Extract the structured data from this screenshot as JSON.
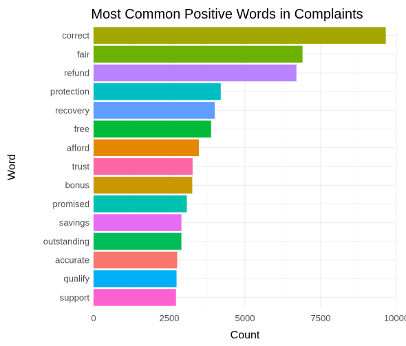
{
  "chart_data": {
    "type": "bar",
    "orientation": "horizontal",
    "title": "Most Common Positive Words in Complaints",
    "xlabel": "Count",
    "ylabel": "Word",
    "xlim": [
      0,
      10000
    ],
    "xticks": [
      "0",
      "2500",
      "5000",
      "7500",
      "10000"
    ],
    "grid": true,
    "legend": "none",
    "categories": [
      "correct",
      "fair",
      "refund",
      "protection",
      "recovery",
      "free",
      "afford",
      "trust",
      "bonus",
      "promised",
      "savings",
      "outstanding",
      "accurate",
      "qualify",
      "support"
    ],
    "values": [
      9650,
      6900,
      6700,
      4200,
      4000,
      3880,
      3480,
      3270,
      3260,
      3080,
      2900,
      2900,
      2760,
      2740,
      2720
    ],
    "colors": [
      "#A3A500",
      "#6BB100",
      "#B983FF",
      "#00BFC4",
      "#619CFF",
      "#00BA38",
      "#E58700",
      "#FF67A4",
      "#C99800",
      "#00C0AF",
      "#E76BF3",
      "#00BC59",
      "#F8766D",
      "#00B0F6",
      "#FD61D1"
    ]
  }
}
